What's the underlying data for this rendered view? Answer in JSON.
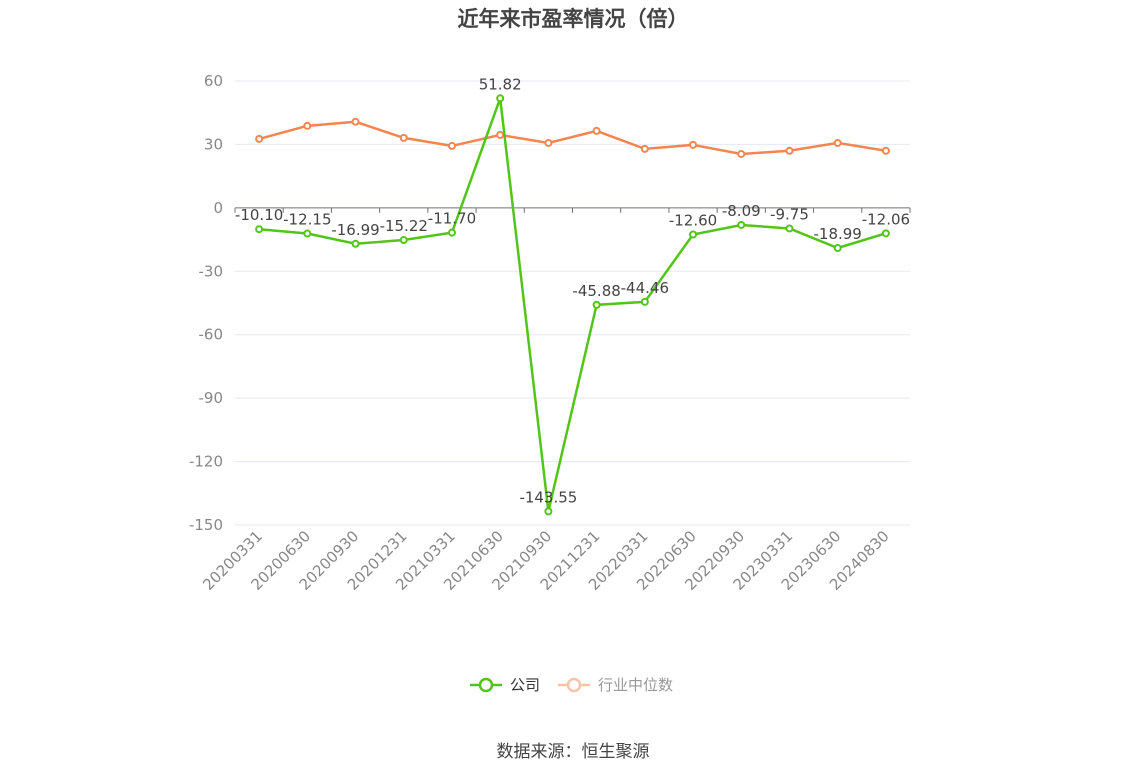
{
  "chart_data": {
    "type": "line",
    "title": "近年来市盈率情况（倍）",
    "categories": [
      "20200331",
      "20200630",
      "20200930",
      "20201231",
      "20210331",
      "20210630",
      "20210930",
      "20211231",
      "20220331",
      "20220630",
      "20220930",
      "20230331",
      "20230630",
      "20240830"
    ],
    "series": [
      {
        "name": "公司",
        "color": "#52c41a",
        "values": [
          -10.1,
          -12.15,
          -16.99,
          -15.22,
          -11.7,
          51.82,
          -143.55,
          -45.88,
          -44.46,
          -12.6,
          -8.09,
          -9.75,
          -18.99,
          -12.06
        ],
        "labels": true
      },
      {
        "name": "行业中位数",
        "color": "#f5854f",
        "values": [
          32.6,
          38.8,
          40.7,
          33.1,
          29.3,
          34.5,
          30.7,
          36.4,
          27.9,
          29.8,
          25.5,
          27.0,
          30.7,
          27.0
        ],
        "labels": false
      }
    ],
    "ylim": [
      -150,
      60
    ],
    "yticks": [
      60,
      30,
      0,
      -30,
      -60,
      -90,
      -120,
      -150
    ],
    "grid": true,
    "legend_position": "bottom"
  },
  "source": "数据来源：恒生聚源"
}
